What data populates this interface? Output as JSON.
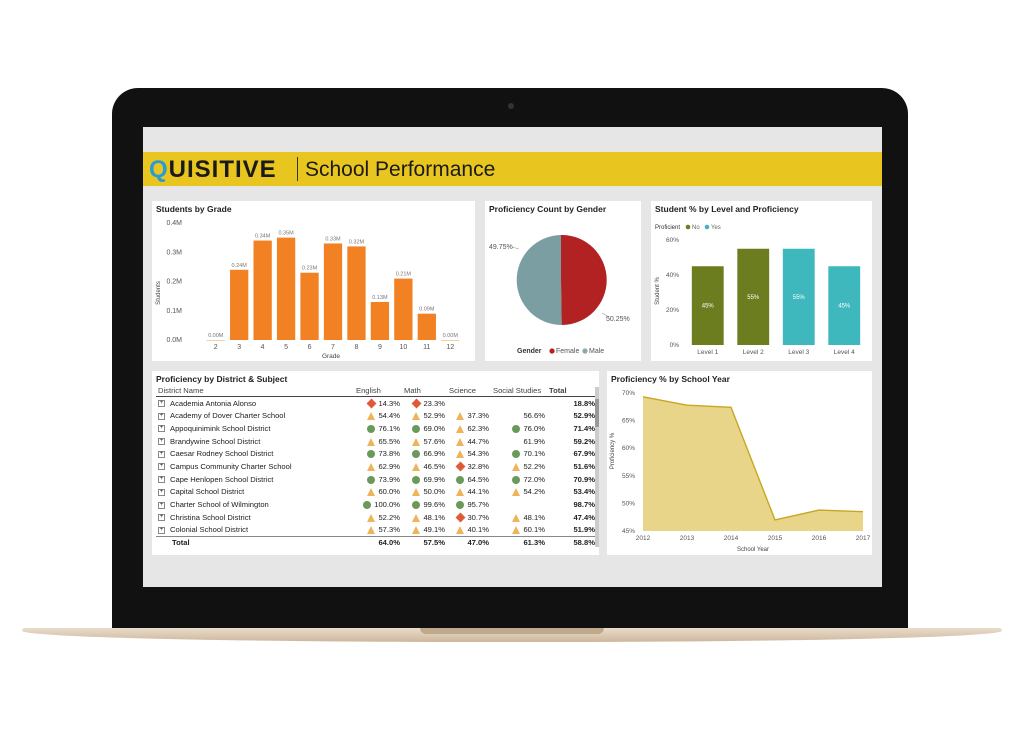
{
  "app": {
    "logo_q": "Q",
    "logo_rest": "UISITIVE",
    "title": "School Performance"
  },
  "colors": {
    "banner": "#e9c520",
    "orange": "#f28124",
    "female": "#b22222",
    "male": "#7a9ea2",
    "no": "#6b7d1f",
    "yes": "#3fb8bd",
    "area": "#e4cb6c"
  },
  "students_by_grade": {
    "title": "Students by Grade",
    "xlabel": "Grade",
    "ylabel": "Students",
    "yticks": [
      "0.4M",
      "0.3M",
      "0.2M",
      "0.1M",
      "0.0M"
    ],
    "chart_data": {
      "type": "bar",
      "categories": [
        "2",
        "3",
        "4",
        "5",
        "6",
        "7",
        "8",
        "9",
        "10",
        "11",
        "12"
      ],
      "values": [
        0.0,
        0.24,
        0.34,
        0.35,
        0.23,
        0.33,
        0.32,
        0.13,
        0.21,
        0.09,
        0.0
      ],
      "labels": [
        "0.00M",
        "0.24M",
        "0.34M",
        "0.35M",
        "0.23M",
        "0.33M",
        "0.32M",
        "0.13M",
        "0.21M",
        "0.09M",
        "0.00M"
      ],
      "ylim": [
        0,
        0.4
      ]
    }
  },
  "gender": {
    "title": "Proficiency Count by Gender",
    "legend_title": "Gender",
    "legend_female": "Female",
    "legend_male": "Male",
    "chart_data": {
      "type": "pie",
      "series": [
        {
          "name": "Female",
          "value": 50.25,
          "label": "50.25%"
        },
        {
          "name": "Male",
          "value": 49.75,
          "label": "49.75%"
        }
      ]
    }
  },
  "level": {
    "title": "Student % by Level and Proficiency",
    "legend_title": "Proficient",
    "legend_no": "No",
    "legend_yes": "Yes",
    "ylabel": "Student %",
    "yticks": [
      "60%",
      "40%",
      "20%",
      "0%"
    ],
    "chart_data": {
      "type": "bar",
      "categories": [
        "Level 1",
        "Level 2",
        "Level 3",
        "Level 4"
      ],
      "values": [
        45,
        55,
        55,
        45
      ],
      "labels": [
        "45%",
        "55%",
        "55%",
        "45%"
      ],
      "proficient": [
        "No",
        "No",
        "Yes",
        "Yes"
      ],
      "ylim": [
        0,
        60
      ]
    }
  },
  "table": {
    "title": "Proficiency by District & Subject",
    "headers": [
      "District Name",
      "English",
      "Math",
      "Science",
      "Social Studies",
      "Total"
    ],
    "rows": [
      {
        "name": "Academia Antonia Alonso",
        "e": "14.3%",
        "ei": "dia",
        "m": "23.3%",
        "mi": "dia",
        "s": "",
        "si": "",
        "ss": "",
        "ssi": "",
        "t": "18.8%"
      },
      {
        "name": "Academy of Dover Charter School",
        "e": "54.4%",
        "ei": "tri",
        "m": "52.9%",
        "mi": "tri",
        "s": "37.3%",
        "si": "tri",
        "ss": "56.6%",
        "ssi": "",
        "t": "52.9%"
      },
      {
        "name": "Appoquinimink School District",
        "e": "76.1%",
        "ei": "circ",
        "m": "69.0%",
        "mi": "circ",
        "s": "62.3%",
        "si": "tri",
        "ss": "76.0%",
        "ssi": "circ",
        "t": "71.4%"
      },
      {
        "name": "Brandywine School District",
        "e": "65.5%",
        "ei": "tri",
        "m": "57.6%",
        "mi": "tri",
        "s": "44.7%",
        "si": "tri",
        "ss": "61.9%",
        "ssi": "",
        "t": "59.2%"
      },
      {
        "name": "Caesar Rodney School District",
        "e": "73.8%",
        "ei": "circ",
        "m": "66.9%",
        "mi": "circ",
        "s": "54.3%",
        "si": "tri",
        "ss": "70.1%",
        "ssi": "circ",
        "t": "67.9%"
      },
      {
        "name": "Campus Community Charter School",
        "e": "62.9%",
        "ei": "tri",
        "m": "46.5%",
        "mi": "tri",
        "s": "32.8%",
        "si": "dia",
        "ss": "52.2%",
        "ssi": "tri",
        "t": "51.6%"
      },
      {
        "name": "Cape Henlopen School District",
        "e": "73.9%",
        "ei": "circ",
        "m": "69.9%",
        "mi": "circ",
        "s": "64.5%",
        "si": "circ",
        "ss": "72.0%",
        "ssi": "circ",
        "t": "70.9%"
      },
      {
        "name": "Capital School District",
        "e": "60.0%",
        "ei": "tri",
        "m": "50.0%",
        "mi": "tri",
        "s": "44.1%",
        "si": "tri",
        "ss": "54.2%",
        "ssi": "tri",
        "t": "53.4%"
      },
      {
        "name": "Charter School of Wilmington",
        "e": "100.0%",
        "ei": "circ",
        "m": "99.6%",
        "mi": "circ",
        "s": "95.7%",
        "si": "circ",
        "ss": "",
        "ssi": "",
        "t": "98.7%"
      },
      {
        "name": "Christina School District",
        "e": "52.2%",
        "ei": "tri",
        "m": "48.1%",
        "mi": "tri",
        "s": "30.7%",
        "si": "dia",
        "ss": "48.1%",
        "ssi": "tri",
        "t": "47.4%"
      },
      {
        "name": "Colonial School District",
        "e": "57.3%",
        "ei": "tri",
        "m": "49.1%",
        "mi": "tri",
        "s": "40.1%",
        "si": "tri",
        "ss": "60.1%",
        "ssi": "tri",
        "t": "51.9%"
      }
    ],
    "total": {
      "name": "Total",
      "e": "64.0%",
      "m": "57.5%",
      "s": "47.0%",
      "ss": "61.3%",
      "t": "58.8%"
    }
  },
  "year": {
    "title": "Proficiency % by School Year",
    "xlabel": "School Year",
    "ylabel": "Proficiency %",
    "yticks": [
      "70%",
      "65%",
      "60%",
      "55%",
      "50%",
      "45%"
    ],
    "chart_data": {
      "type": "area",
      "x": [
        "2012",
        "2013",
        "2014",
        "2015",
        "2016",
        "2017"
      ],
      "values": [
        69.3,
        67.8,
        67.4,
        47.0,
        48.8,
        48.5
      ],
      "ylim": [
        45,
        70
      ]
    }
  }
}
